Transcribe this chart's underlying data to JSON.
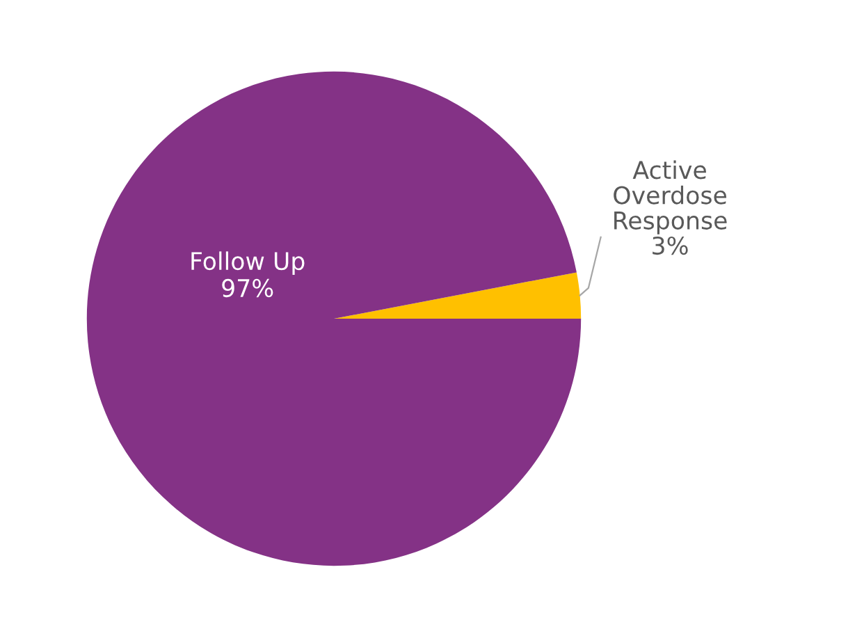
{
  "chart_data": {
    "type": "pie",
    "categories": [
      "Active Overdose Response",
      "Follow Up"
    ],
    "values": [
      3,
      97
    ],
    "value_labels": [
      "3%",
      "97%"
    ],
    "colors": [
      "#ffc000",
      "#843286"
    ],
    "legend": false
  }
}
